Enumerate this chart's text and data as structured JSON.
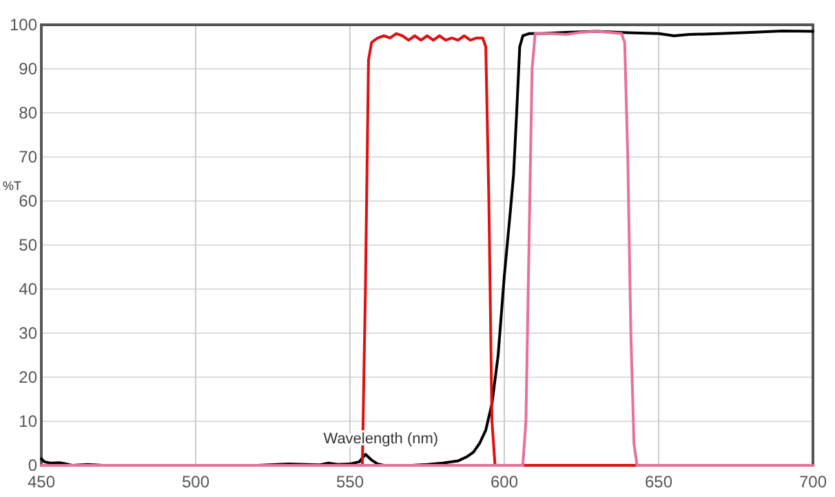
{
  "chart_data": {
    "type": "line",
    "xlabel": "Wavelength (nm)",
    "ylabel": "%T",
    "xlim": [
      450,
      700
    ],
    "ylim": [
      0,
      100
    ],
    "xticks": [
      450,
      500,
      550,
      600,
      650,
      700
    ],
    "yticks": [
      0,
      10,
      20,
      30,
      40,
      50,
      60,
      70,
      80,
      90,
      100
    ],
    "grid": true,
    "line_style": "solid",
    "marker": "none",
    "series": [
      {
        "color": "#000000",
        "x": [
          450,
          451,
          453,
          456,
          458,
          460,
          465,
          470,
          480,
          500,
          520,
          530,
          540,
          543,
          546,
          550,
          553,
          555,
          557,
          559,
          561,
          565,
          570,
          575,
          580,
          585,
          588,
          590,
          592,
          594,
          596,
          598,
          600,
          602,
          603,
          604,
          605,
          606,
          608,
          612,
          620,
          630,
          640,
          650,
          655,
          660,
          670,
          680,
          690,
          700
        ],
        "values": [
          1.5,
          0.8,
          0.5,
          0.6,
          0.3,
          0,
          0.2,
          0,
          0,
          0,
          0,
          0.3,
          0.1,
          0.5,
          0.2,
          0.3,
          0.8,
          2.5,
          1.2,
          0.3,
          0,
          0,
          0,
          0.2,
          0.5,
          1,
          2,
          3,
          5,
          8,
          14,
          25,
          43,
          58,
          66,
          80,
          95,
          97.5,
          98,
          98,
          98.3,
          98.5,
          98.2,
          98,
          97.5,
          97.8,
          98,
          98.3,
          98.6,
          98.5
        ]
      },
      {
        "color": "#e01010",
        "x": [
          450,
          554,
          555,
          556,
          557,
          559,
          561,
          563,
          565,
          567,
          569,
          571,
          573,
          575,
          577,
          579,
          581,
          583,
          585,
          587,
          589,
          591,
          593,
          594,
          595,
          596,
          597,
          700
        ],
        "values": [
          0,
          0,
          40,
          92,
          96,
          97,
          97.5,
          97,
          98,
          97.5,
          96.5,
          97.5,
          96.5,
          97.5,
          96.5,
          97.5,
          96.5,
          97,
          96.5,
          97.5,
          96.5,
          97,
          97,
          95,
          60,
          10,
          0,
          0
        ]
      },
      {
        "color": "#e8709a",
        "x": [
          450,
          606,
          607,
          608,
          609,
          610,
          615,
          620,
          625,
          630,
          635,
          638,
          639,
          640,
          641,
          642,
          643,
          700
        ],
        "values": [
          0,
          0,
          10,
          50,
          90,
          98,
          98,
          97.8,
          98.3,
          98.5,
          98.2,
          98,
          96,
          70,
          30,
          5,
          0,
          0
        ]
      }
    ]
  }
}
